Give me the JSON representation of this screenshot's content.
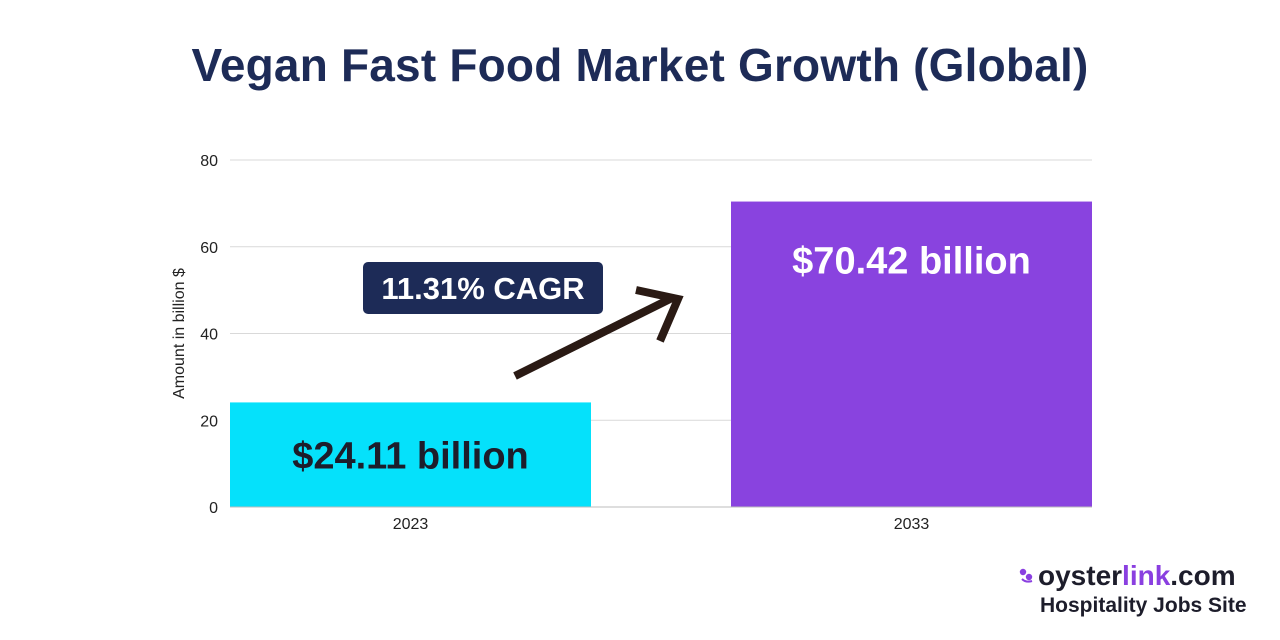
{
  "title": "Vegan Fast Food Market Growth (Global)",
  "chart_data": {
    "type": "bar",
    "categories": [
      "2023",
      "2033"
    ],
    "values": [
      24.11,
      70.42
    ],
    "bar_labels": [
      "$24.11 billion",
      "$70.42 billion"
    ],
    "colors": [
      "#05e1fb",
      "#8943df"
    ],
    "ylabel": "Amount in billion $",
    "xlabel": "",
    "ylim": [
      0,
      80
    ],
    "yticks": [
      0,
      20,
      40,
      60,
      80
    ],
    "grid": true,
    "annotation": "11.31% CAGR"
  },
  "logo": {
    "word": "oyster",
    "accent": "link",
    "tld": ".com",
    "tagline": "Hospitality Jobs Site"
  }
}
